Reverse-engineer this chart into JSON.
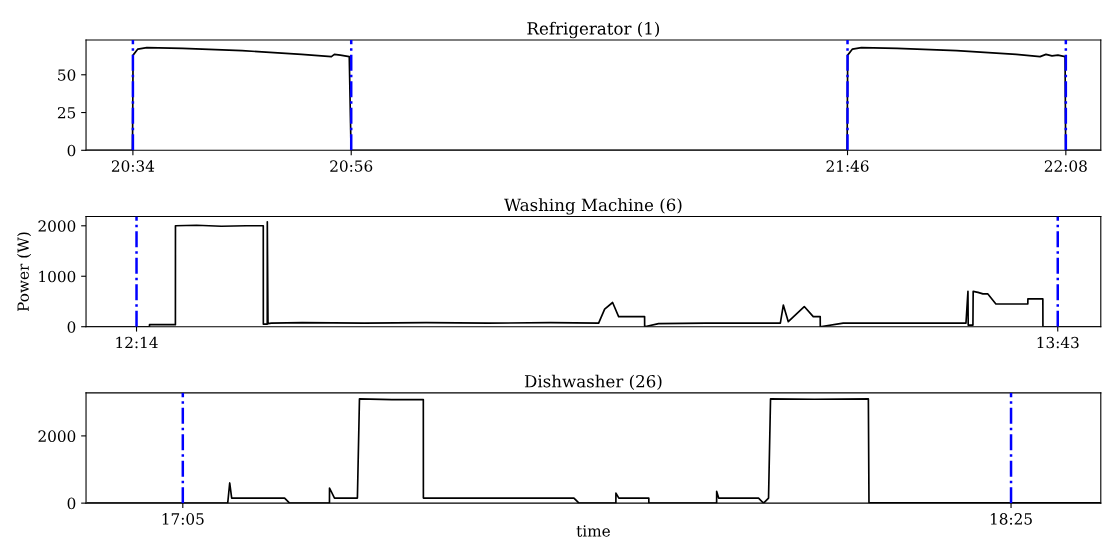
{
  "chart_data": [
    {
      "type": "line",
      "title": "Refrigerator (1)",
      "xlim": [
        20.488,
        22.192
      ],
      "ylim": [
        0,
        73
      ],
      "yticks": [
        0,
        25,
        50
      ],
      "xticks": [
        {
          "value": 20.5667,
          "label": "20:34"
        },
        {
          "value": 20.9333,
          "label": "20:56"
        },
        {
          "value": 21.7667,
          "label": "21:46"
        },
        {
          "value": 22.1333,
          "label": "22:08"
        }
      ],
      "ref_lines": [
        {
          "axis": "x",
          "value": 20.5667,
          "label": null,
          "color": "#0000ff",
          "line_style": "dashdot"
        },
        {
          "axis": "x",
          "value": 20.9333,
          "label": null,
          "color": "#0000ff",
          "line_style": "dashdot"
        },
        {
          "axis": "x",
          "value": 21.7667,
          "label": null,
          "color": "#0000ff",
          "line_style": "dashdot"
        },
        {
          "axis": "x",
          "value": 22.1333,
          "label": null,
          "color": "#0000ff",
          "line_style": "dashdot"
        }
      ],
      "grid": false,
      "series": [
        {
          "color": "#000000",
          "x": [
            20.49,
            20.566,
            20.567,
            20.575,
            20.59,
            20.65,
            20.75,
            20.85,
            20.9,
            20.905,
            20.915,
            20.93,
            20.933,
            21.766,
            21.767,
            21.775,
            21.79,
            21.85,
            21.95,
            22.05,
            22.09,
            22.1,
            22.11,
            22.12,
            22.132,
            22.133,
            22.19
          ],
          "values": [
            0,
            0,
            63,
            67,
            68,
            67.5,
            66,
            63.5,
            62,
            63.5,
            63,
            62,
            0,
            0,
            63,
            67,
            68,
            67.5,
            66,
            63.5,
            62,
            63.5,
            62.5,
            63,
            62,
            0,
            0
          ]
        }
      ]
    },
    {
      "type": "line",
      "title": "Washing Machine (6)",
      "ylabel": "Power (W)",
      "xlim": [
        12.152,
        13.786
      ],
      "ylim": [
        0,
        2185
      ],
      "yticks": [
        0,
        1000,
        2000
      ],
      "xticks": [
        {
          "value": 12.2333,
          "label": "12:14"
        },
        {
          "value": 13.7167,
          "label": "13:43"
        }
      ],
      "ref_lines": [
        {
          "axis": "x",
          "value": 12.2333,
          "label": null,
          "color": "#0000ff",
          "line_style": "dashdot"
        },
        {
          "axis": "x",
          "value": 13.7167,
          "label": null,
          "color": "#0000ff",
          "line_style": "dashdot"
        }
      ],
      "grid": false,
      "series": [
        {
          "color": "#000000",
          "x": [
            12.152,
            12.2541,
            12.2542,
            12.2959,
            12.296,
            12.33,
            12.37,
            12.41,
            12.4374,
            12.4375,
            12.4438,
            12.4439,
            12.445,
            12.4503,
            12.5,
            12.6,
            12.7,
            12.8,
            12.9,
            12.9774,
            12.9871,
            12.9999,
            13.0096,
            13.0514,
            13.0515,
            13.0739,
            13.15,
            13.27,
            13.2748,
            13.2828,
            13.3085,
            13.323,
            13.3342,
            13.3343,
            13.3712,
            13.45,
            13.5689,
            13.5721,
            13.5725,
            13.5801,
            13.5805,
            13.5882,
            13.5962,
            13.6042,
            13.6171,
            13.6685,
            13.6686,
            13.6927,
            13.6928,
            13.786
          ],
          "values": [
            0,
            0,
            40,
            40,
            2000,
            2010,
            1990,
            2000,
            2000,
            50,
            50,
            2080,
            60,
            70,
            80,
            70,
            80,
            70,
            80,
            70,
            350,
            480,
            200,
            200,
            0,
            60,
            70,
            70,
            430,
            100,
            400,
            200,
            200,
            0,
            70,
            70,
            70,
            700,
            30,
            30,
            700,
            680,
            650,
            650,
            450,
            450,
            550,
            550,
            0,
            0
          ]
        }
      ]
    },
    {
      "type": "line",
      "title": "Dishwasher (26)",
      "xlabel": "time",
      "xlim": [
        16.9275,
        18.5612
      ],
      "ylim": [
        0,
        3280
      ],
      "yticks": [
        0,
        2000
      ],
      "xticks": [
        {
          "value": 17.0833,
          "label": "17:05"
        },
        {
          "value": 18.4167,
          "label": "18:25"
        }
      ],
      "ref_lines": [
        {
          "axis": "x",
          "value": 17.0833,
          "label": null,
          "color": "#0000ff",
          "line_style": "dashdot"
        },
        {
          "axis": "x",
          "value": 18.4167,
          "label": null,
          "color": "#0000ff",
          "line_style": "dashdot"
        }
      ],
      "grid": false,
      "series": [
        {
          "color": "#000000",
          "x": [
            16.93,
            17.1556,
            17.1588,
            17.162,
            17.2472,
            17.2552,
            17.3194,
            17.3195,
            17.3275,
            17.3644,
            17.3677,
            17.42,
            17.4705,
            17.4706,
            17.713,
            17.7211,
            17.7805,
            17.7806,
            17.7853,
            17.8335,
            17.8336,
            17.9427,
            17.9428,
            17.946,
            18.0102,
            18.0183,
            18.0263,
            18.0295,
            18.1,
            18.187,
            18.188,
            18.56
          ],
          "values": [
            0,
            0,
            600,
            150,
            150,
            0,
            0,
            450,
            150,
            150,
            3100,
            3080,
            3080,
            150,
            150,
            0,
            0,
            300,
            150,
            150,
            0,
            0,
            350,
            150,
            150,
            0,
            150,
            3100,
            3090,
            3100,
            10,
            10
          ]
        }
      ]
    }
  ]
}
